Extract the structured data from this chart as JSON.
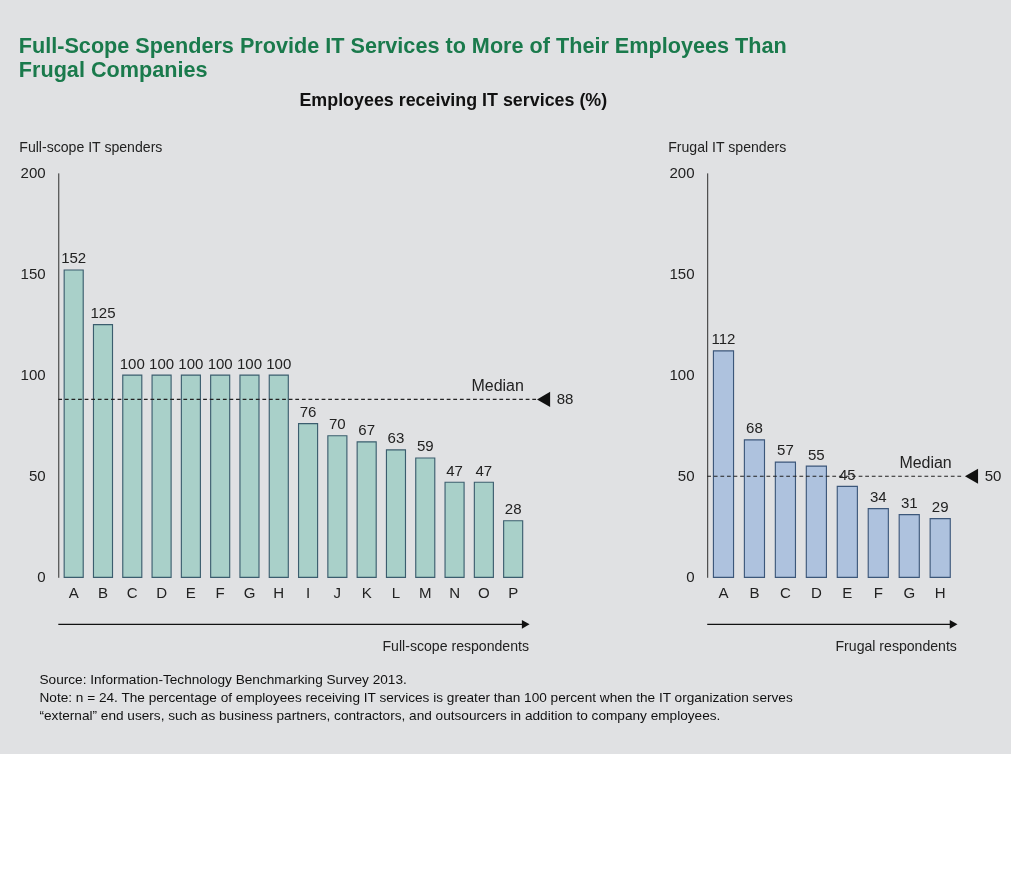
{
  "chart_data": [
    {
      "type": "bar",
      "title": "Full-Scope Spenders Provide IT Services to More of Their Employees Than Frugal Companies",
      "subtitle": "Employees receiving IT services (%)",
      "ylabel": "Full-scope IT spenders",
      "xlabel": "Full-scope respondents",
      "categories": [
        "A",
        "B",
        "C",
        "D",
        "E",
        "F",
        "G",
        "H",
        "I",
        "J",
        "K",
        "L",
        "M",
        "N",
        "O",
        "P"
      ],
      "series": [
        {
          "color": "#a9d0c9",
          "values": [
            152,
            125,
            100,
            100,
            100,
            100,
            100,
            100,
            76,
            70,
            67,
            63,
            59,
            47,
            47,
            28
          ]
        }
      ],
      "ylim": [
        0,
        200
      ],
      "yticks": [
        0,
        50,
        100,
        150,
        200
      ],
      "grid": false,
      "data_labels": true,
      "ref_lines": [
        {
          "axis": "y",
          "value": 88,
          "label": "Median"
        }
      ],
      "annotations": [
        "88",
        "Source: Information-Technology Benchmarking Survey 2013.",
        "Note: n = 24. The percentage of employees receiving IT services is greater than 100 percent when the IT organization serves “external” end users, such as business partners, contractors, and outsourcers in addition to company employees."
      ]
    },
    {
      "type": "bar",
      "ylabel": "Frugal IT spenders",
      "xlabel": "Frugal respondents",
      "categories": [
        "A",
        "B",
        "C",
        "D",
        "E",
        "F",
        "G",
        "H"
      ],
      "series": [
        {
          "color": "#aec2de",
          "values": [
            112,
            68,
            57,
            55,
            45,
            34,
            31,
            29
          ]
        }
      ],
      "ylim": [
        0,
        200
      ],
      "yticks": [
        0,
        50,
        100,
        150,
        200
      ],
      "grid": false,
      "data_labels": true,
      "ref_lines": [
        {
          "axis": "y",
          "value": 50,
          "label": "Median"
        }
      ],
      "annotations": [
        "50"
      ]
    }
  ]
}
